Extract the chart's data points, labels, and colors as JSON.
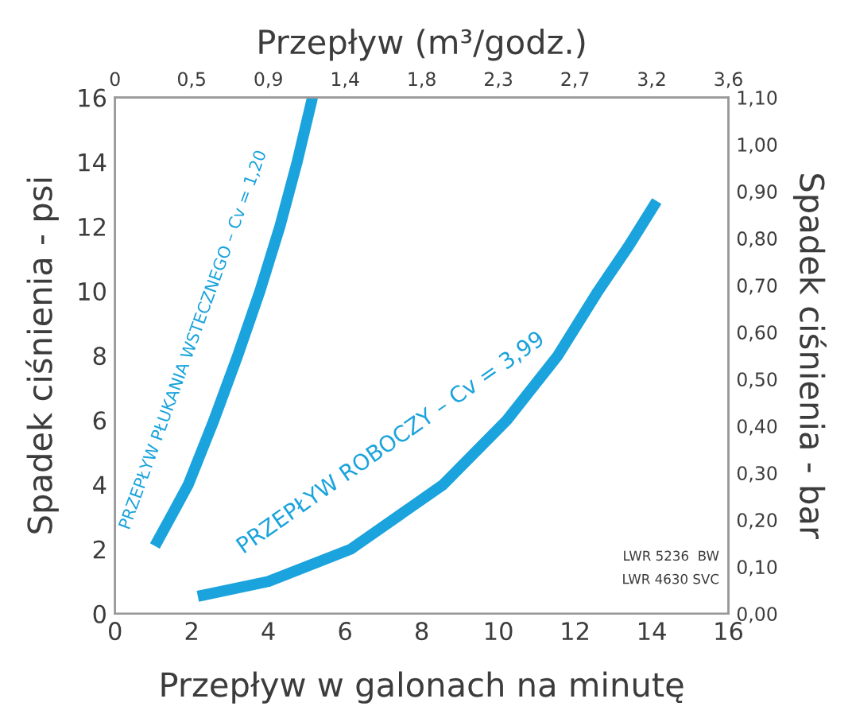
{
  "chart_data": {
    "type": "line",
    "xlabel": "Przepływ w galonach na minutę",
    "ylabel": "Spadek ciśnienia - psi",
    "y2label": "Spadek ciśnienia - bar",
    "x2label": "Przepływ (m³/godz.)",
    "xlim": [
      0,
      16
    ],
    "xticks": [
      0,
      2,
      4,
      6,
      8,
      10,
      12,
      14,
      16
    ],
    "ylim": [
      0,
      16
    ],
    "yticks": [
      0,
      2,
      4,
      6,
      8,
      10,
      12,
      14,
      16
    ],
    "x2lim": [
      0,
      3.6
    ],
    "x2ticks": [
      {
        "value": 0,
        "label": "0"
      },
      {
        "value": 0.45,
        "label": "0,5"
      },
      {
        "value": 0.9,
        "label": "0,9"
      },
      {
        "value": 1.35,
        "label": "1,4"
      },
      {
        "value": 1.8,
        "label": "1,8"
      },
      {
        "value": 2.25,
        "label": "2,3"
      },
      {
        "value": 2.7,
        "label": "2,7"
      },
      {
        "value": 3.15,
        "label": "3,2"
      },
      {
        "value": 3.6,
        "label": "3,6"
      }
    ],
    "y2lim": [
      0,
      1.1
    ],
    "y2ticks": [
      {
        "value": 0,
        "label": "0,00"
      },
      {
        "value": 0.1,
        "label": "0,10"
      },
      {
        "value": 0.2,
        "label": "0,20"
      },
      {
        "value": 0.3,
        "label": "0,30"
      },
      {
        "value": 0.4,
        "label": "0,40"
      },
      {
        "value": 0.5,
        "label": "0,50"
      },
      {
        "value": 0.6,
        "label": "0,60"
      },
      {
        "value": 0.7,
        "label": "0,70"
      },
      {
        "value": 0.8,
        "label": "0,80"
      },
      {
        "value": 0.9,
        "label": "0,90"
      },
      {
        "value": 1.0,
        "label": "1,00"
      },
      {
        "value": 1.1,
        "label": "1,10"
      }
    ],
    "grid": false,
    "legend": false,
    "marker": "none",
    "line_style": "solid",
    "series": [
      {
        "color": "#1aa3dc",
        "x": [
          1.04,
          1.5,
          1.91,
          2.58,
          3.2,
          3.78,
          4.3,
          4.75,
          5.15
        ],
        "values": [
          2.1,
          3.1,
          4.0,
          6.0,
          8.0,
          10.0,
          12.0,
          14.0,
          16.0
        ]
      },
      {
        "color": "#1aa3dc",
        "x": [
          2.16,
          4.0,
          6.15,
          8.56,
          10.22,
          11.55,
          12.6,
          13.4,
          14.13
        ],
        "values": [
          0.54,
          1.0,
          2.0,
          4.0,
          6.0,
          8.0,
          10.0,
          11.4,
          12.79
        ]
      }
    ],
    "annotations": [
      "PRZEPŁYW PŁUKANIA WSTECZNEGO – Cv = 1,20",
      "PRZEPŁYW ROBOCZY – Cv = 3,99",
      "LWR 5236  BW",
      "LWR 4630 SVC"
    ]
  }
}
